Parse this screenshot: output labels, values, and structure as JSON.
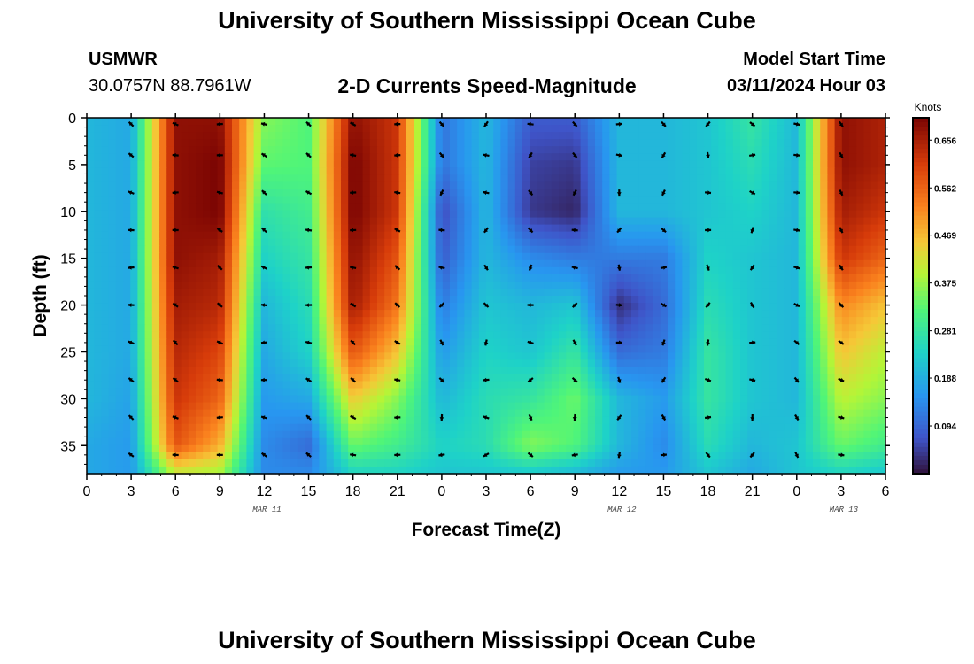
{
  "header": {
    "title": "University of Southern Mississippi Ocean Cube",
    "station": "USMWR",
    "coords": "30.0757N  88.7961W",
    "subtitle": "2-D Currents Speed-Magnitude",
    "start_label": "Model Start Time",
    "start_value": "03/11/2024 Hour 03"
  },
  "footer": {
    "title": "University of Southern Mississippi Ocean Cube"
  },
  "chart_data": {
    "type": "heatmap",
    "title": "2-D Currents Speed-Magnitude",
    "xlabel": "Forecast Time(Z)",
    "ylabel": "Depth (ft)",
    "units": "Knots",
    "x_range_hours": [
      0,
      54
    ],
    "y_range": [
      0,
      38
    ],
    "x_tick_labels": [
      "0",
      "3",
      "6",
      "9",
      "12",
      "15",
      "18",
      "21",
      "0",
      "3",
      "6",
      "9",
      "12",
      "15",
      "18",
      "21",
      "0",
      "3",
      "6"
    ],
    "y_ticks": [
      0,
      5,
      10,
      15,
      20,
      25,
      30,
      35
    ],
    "date_labels": [
      {
        "hour": 12,
        "text": "MAR 11"
      },
      {
        "hour": 36,
        "text": "MAR 12"
      },
      {
        "hour": 51,
        "text": "MAR 13"
      }
    ],
    "colorbar": {
      "min": 0.0,
      "max": 0.7,
      "ticks": [
        "0.656",
        "0.562",
        "0.469",
        "0.375",
        "0.281",
        "0.188",
        "0.094"
      ]
    },
    "grid_hours": [
      0,
      3,
      6,
      9,
      12,
      15,
      18,
      21,
      24,
      27,
      30,
      33,
      36,
      39,
      42,
      45,
      48,
      51,
      54
    ],
    "grid_depths": [
      0,
      5,
      10,
      15,
      20,
      25,
      30,
      35,
      38
    ],
    "speed_knots": [
      [
        0.2,
        0.18,
        0.68,
        0.68,
        0.36,
        0.32,
        0.68,
        0.62,
        0.11,
        0.2,
        0.08,
        0.08,
        0.2,
        0.2,
        0.22,
        0.28,
        0.2,
        0.68,
        0.65
      ],
      [
        0.2,
        0.18,
        0.68,
        0.7,
        0.33,
        0.32,
        0.7,
        0.62,
        0.11,
        0.2,
        0.05,
        0.04,
        0.2,
        0.2,
        0.22,
        0.26,
        0.2,
        0.68,
        0.65
      ],
      [
        0.2,
        0.18,
        0.68,
        0.7,
        0.27,
        0.3,
        0.7,
        0.62,
        0.06,
        0.2,
        0.04,
        0.02,
        0.2,
        0.2,
        0.22,
        0.24,
        0.2,
        0.66,
        0.62
      ],
      [
        0.2,
        0.18,
        0.68,
        0.66,
        0.24,
        0.28,
        0.68,
        0.58,
        0.08,
        0.2,
        0.14,
        0.12,
        0.12,
        0.12,
        0.24,
        0.22,
        0.2,
        0.62,
        0.56
      ],
      [
        0.2,
        0.18,
        0.66,
        0.64,
        0.2,
        0.26,
        0.66,
        0.54,
        0.12,
        0.22,
        0.2,
        0.22,
        0.03,
        0.1,
        0.26,
        0.22,
        0.2,
        0.52,
        0.46
      ],
      [
        0.2,
        0.18,
        0.64,
        0.6,
        0.18,
        0.24,
        0.58,
        0.46,
        0.16,
        0.24,
        0.22,
        0.28,
        0.1,
        0.12,
        0.28,
        0.22,
        0.2,
        0.46,
        0.4
      ],
      [
        0.2,
        0.17,
        0.62,
        0.56,
        0.16,
        0.18,
        0.45,
        0.36,
        0.2,
        0.26,
        0.28,
        0.34,
        0.2,
        0.16,
        0.28,
        0.22,
        0.2,
        0.4,
        0.36
      ],
      [
        0.18,
        0.16,
        0.58,
        0.48,
        0.14,
        0.1,
        0.34,
        0.3,
        0.24,
        0.26,
        0.36,
        0.32,
        0.2,
        0.14,
        0.26,
        0.2,
        0.22,
        0.34,
        0.3
      ],
      [
        0.18,
        0.16,
        0.4,
        0.38,
        0.14,
        0.14,
        0.24,
        0.24,
        0.22,
        0.22,
        0.22,
        0.2,
        0.16,
        0.16,
        0.22,
        0.18,
        0.22,
        0.24,
        0.22
      ]
    ]
  }
}
